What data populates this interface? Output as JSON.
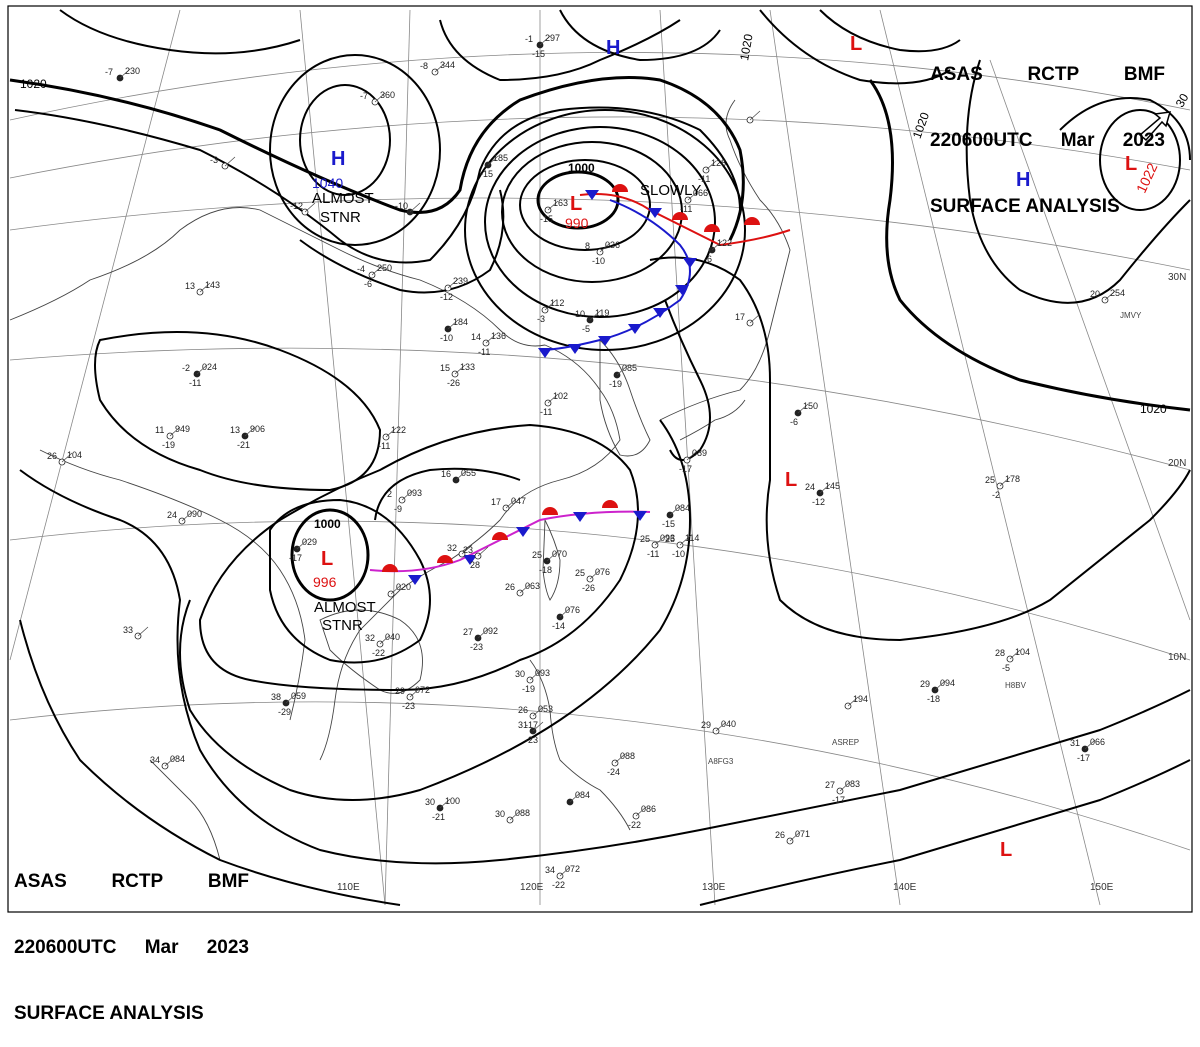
{
  "header": {
    "line1": [
      "ASAS",
      "RCTP",
      "BMF"
    ],
    "line2": [
      "220600UTC",
      "Mar",
      "2023"
    ],
    "line3": "SURFACE ANALYSIS"
  },
  "pressure_centers": [
    {
      "type": "H",
      "value": "1040",
      "color": "#1a1acc"
    },
    {
      "type": "H",
      "value": "",
      "color": "#1a1acc"
    },
    {
      "type": "H",
      "value": "",
      "color": "#1a1acc"
    },
    {
      "type": "L",
      "value": "990",
      "color": "#dd1111"
    },
    {
      "type": "L",
      "value": "996",
      "color": "#dd1111"
    },
    {
      "type": "L",
      "value": "1022",
      "color": "#dd1111"
    },
    {
      "type": "L",
      "value": "",
      "color": "#dd1111"
    },
    {
      "type": "L",
      "value": "",
      "color": "#dd1111"
    },
    {
      "type": "L",
      "value": "",
      "color": "#dd1111"
    }
  ],
  "annotations": [
    {
      "id": "almost-stnr-north",
      "lines": [
        "ALMOST",
        "STNR"
      ]
    },
    {
      "id": "almost-stnr-south",
      "lines": [
        "ALMOST",
        "STNR"
      ]
    },
    {
      "id": "slowly",
      "lines": [
        "SLOWLY"
      ]
    }
  ],
  "isobar_labels": [
    "1020",
    "1020",
    "1020",
    "1020",
    "1000",
    "1000",
    "30"
  ],
  "longitude_labels": [
    "110E",
    "120E",
    "130E",
    "140E",
    "150E"
  ],
  "latitude_labels": [
    "30N",
    "20N",
    "10N"
  ],
  "stations": [
    {
      "t": "-1",
      "p": "297",
      "d": "-15"
    },
    {
      "t": "-8",
      "p": "344",
      "d": ""
    },
    {
      "t": "-7",
      "p": "360",
      "d": ""
    },
    {
      "t": "-7",
      "p": "230",
      "d": ""
    },
    {
      "t": "-3",
      "p": "",
      "d": ""
    },
    {
      "t": "-12",
      "p": "",
      "d": ""
    },
    {
      "t": "-10",
      "p": "",
      "d": ""
    },
    {
      "t": "-4",
      "p": "250",
      "d": "-6"
    },
    {
      "t": "",
      "p": "239",
      "d": "-12"
    },
    {
      "t": "",
      "p": "184",
      "d": "-10"
    },
    {
      "t": "14",
      "p": "136",
      "d": "-11"
    },
    {
      "t": "",
      "p": "112",
      "d": "-3"
    },
    {
      "t": "10",
      "p": "119",
      "d": "-5"
    },
    {
      "t": "8",
      "p": "036",
      "d": "-10"
    },
    {
      "t": "",
      "p": "163",
      "d": "-15"
    },
    {
      "t": "",
      "p": "185",
      "d": "-15"
    },
    {
      "t": "",
      "p": "128",
      "d": "-11"
    },
    {
      "t": "",
      "p": "066",
      "d": "-11"
    },
    {
      "t": "",
      "p": "122",
      "d": "-6"
    },
    {
      "t": "",
      "p": "",
      "d": ""
    },
    {
      "t": "13",
      "p": "143",
      "d": ""
    },
    {
      "t": "-2",
      "p": "024",
      "d": "-11"
    },
    {
      "t": "15",
      "p": "133",
      "d": "-26"
    },
    {
      "t": "11",
      "p": "949",
      "d": "-19"
    },
    {
      "t": "13",
      "p": "906",
      "d": "-21"
    },
    {
      "t": "",
      "p": "122",
      "d": "-11"
    },
    {
      "t": "",
      "p": "102",
      "d": "-11"
    },
    {
      "t": "",
      "p": "085",
      "d": "-19"
    },
    {
      "t": "",
      "p": "089",
      "d": "-17"
    },
    {
      "t": "17",
      "p": "",
      "d": ""
    },
    {
      "t": "",
      "p": "150",
      "d": "-6"
    },
    {
      "t": "26",
      "p": "104",
      "d": ""
    },
    {
      "t": "24",
      "p": "090",
      "d": ""
    },
    {
      "t": "16",
      "p": "055",
      "d": ""
    },
    {
      "t": "2",
      "p": "093",
      "d": "-9"
    },
    {
      "t": "17",
      "p": "047",
      "d": ""
    },
    {
      "t": "",
      "p": "084",
      "d": "-15"
    },
    {
      "t": "25",
      "p": "093",
      "d": "-11"
    },
    {
      "t": "25",
      "p": "114",
      "d": "-10"
    },
    {
      "t": "24",
      "p": "145",
      "d": "-12"
    },
    {
      "t": "25",
      "p": "178",
      "d": "-2"
    },
    {
      "t": "20",
      "p": "254",
      "d": ""
    },
    {
      "t": "",
      "p": "029",
      "d": "-17"
    },
    {
      "t": "32",
      "p": "",
      "d": ""
    },
    {
      "t": "23",
      "p": "",
      "d": "28"
    },
    {
      "t": "25",
      "p": "070",
      "d": "-18"
    },
    {
      "t": "25",
      "p": "076",
      "d": "-26"
    },
    {
      "t": "26",
      "p": "063",
      "d": ""
    },
    {
      "t": "",
      "p": "076",
      "d": "-14"
    },
    {
      "t": "",
      "p": "020",
      "d": ""
    },
    {
      "t": "32",
      "p": "040",
      "d": "-22"
    },
    {
      "t": "27",
      "p": "092",
      "d": "-23"
    },
    {
      "t": "33",
      "p": "",
      "d": ""
    },
    {
      "t": "29",
      "p": "072",
      "d": "-23"
    },
    {
      "t": "38",
      "p": "059",
      "d": "-29"
    },
    {
      "t": "30",
      "p": "093",
      "d": "-19"
    },
    {
      "t": "26",
      "p": "053",
      "d": "-17"
    },
    {
      "t": "31",
      "p": "",
      "d": "-23"
    },
    {
      "t": "29",
      "p": "040",
      "d": ""
    },
    {
      "t": "",
      "p": "194",
      "d": ""
    },
    {
      "t": "29",
      "p": "094",
      "d": "-18"
    },
    {
      "t": "28",
      "p": "104",
      "d": "-5"
    },
    {
      "t": "34",
      "p": "084",
      "d": ""
    },
    {
      "t": "30",
      "p": "100",
      "d": "-21"
    },
    {
      "t": "30",
      "p": "088",
      "d": ""
    },
    {
      "t": "",
      "p": "088",
      "d": "-24"
    },
    {
      "t": "",
      "p": "084",
      "d": ""
    },
    {
      "t": "",
      "p": "086",
      "d": "-22"
    },
    {
      "t": "27",
      "p": "083",
      "d": "-17"
    },
    {
      "t": "31",
      "p": "066",
      "d": "-17"
    },
    {
      "t": "26",
      "p": "071",
      "d": ""
    },
    {
      "t": "34",
      "p": "072",
      "d": "-22"
    }
  ],
  "ship_callsigns": [
    "JMVY",
    "H8BV",
    "ASREP",
    "A8FG3"
  ]
}
